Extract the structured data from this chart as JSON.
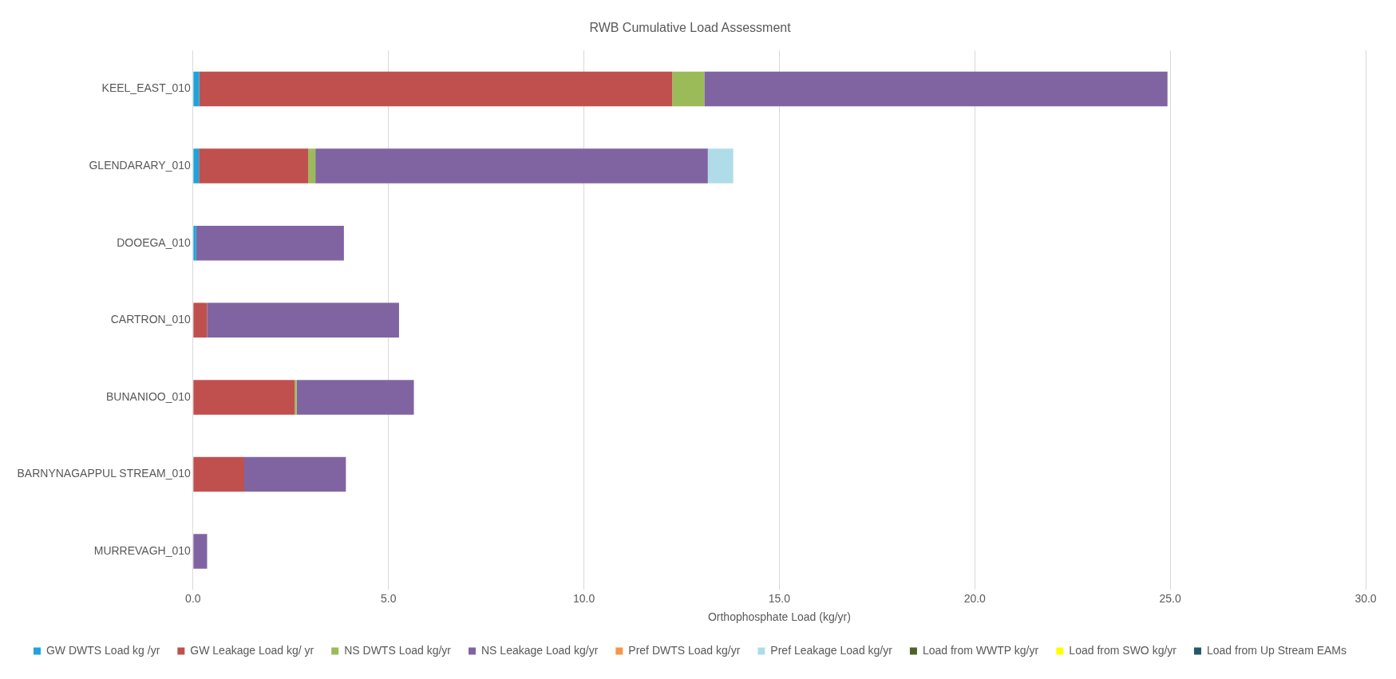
{
  "chart_data": {
    "type": "bar",
    "title": "RWB Cumulative Load Assessment",
    "xlabel": "Orthophosphate Load (kg/yr)",
    "orientation": "horizontal",
    "stacked": true,
    "categories": [
      "KEEL_EAST_010",
      "GLENDARARY_010",
      "DOOEGA_010",
      "CARTRON_010",
      "BUNANIOO_010",
      "BARNYNAGAPPUL STREAM_010",
      "MURREVAGH_010"
    ],
    "series": [
      {
        "name": "GW DWTS Load kg /yr",
        "color": "#1fa3dc",
        "values": [
          0.16,
          0.15,
          0.08,
          null,
          null,
          null,
          null
        ]
      },
      {
        "name": "GW Leakage Load kg/ yr",
        "color": "#c0504d",
        "values": [
          12.1,
          2.8,
          null,
          0.36,
          2.6,
          1.31,
          null
        ]
      },
      {
        "name": "NS DWTS Load kg/yr",
        "color": "#9bbb59",
        "values": [
          0.82,
          0.18,
          null,
          null,
          0.05,
          null,
          null
        ]
      },
      {
        "name": "NS Leakage Load kg/yr",
        "color": "#8064a2",
        "values": [
          11.85,
          10.04,
          3.78,
          4.91,
          3.0,
          2.6,
          0.36
        ]
      },
      {
        "name": "Pref DWTS Load kg/yr",
        "color": "#f79646",
        "values": [
          null,
          null,
          null,
          null,
          null,
          null,
          null
        ]
      },
      {
        "name": "Pref Leakage Load kg/yr",
        "color": "#b0dce8",
        "values": [
          null,
          0.65,
          null,
          null,
          null,
          null,
          null
        ]
      },
      {
        "name": "Load from WWTP kg/yr",
        "color": "#4f6228",
        "values": [
          null,
          null,
          null,
          null,
          null,
          null,
          null
        ]
      },
      {
        "name": "Load from SWO kg/yr",
        "color": "#ffff00",
        "values": [
          null,
          null,
          null,
          null,
          null,
          null,
          null
        ]
      },
      {
        "name": "Load from Up Stream EAMs",
        "color": "#215968",
        "values": [
          null,
          null,
          null,
          null,
          null,
          null,
          null
        ]
      }
    ],
    "xlim": [
      0,
      30
    ],
    "xticks": [
      {
        "value": 0,
        "label": "0.0"
      },
      {
        "value": 5,
        "label": "5.0"
      },
      {
        "value": 10,
        "label": "10.0"
      },
      {
        "value": 15,
        "label": "15.0"
      },
      {
        "value": 20,
        "label": "20.0"
      },
      {
        "value": 25,
        "label": "25.0"
      },
      {
        "value": 30,
        "label": "30.0"
      }
    ],
    "grid": "x",
    "legend": "bottom"
  }
}
